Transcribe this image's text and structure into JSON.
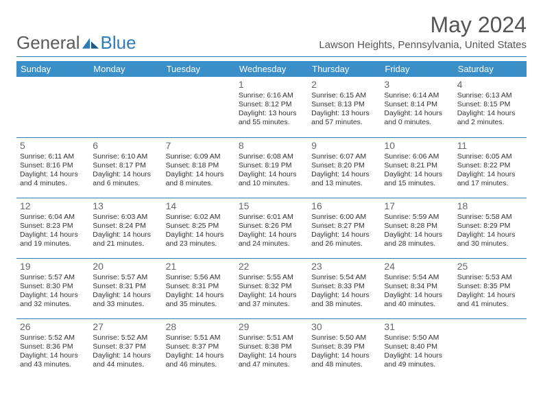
{
  "logo": {
    "text_a": "General",
    "text_b": "Blue"
  },
  "title": "May 2024",
  "location": "Lawson Heights, Pennsylvania, United States",
  "colors": {
    "header_bg": "#3b8fc9",
    "rule": "#2f7bb8",
    "text": "#333333",
    "muted": "#666666"
  },
  "day_headers": [
    "Sunday",
    "Monday",
    "Tuesday",
    "Wednesday",
    "Thursday",
    "Friday",
    "Saturday"
  ],
  "weeks": [
    [
      null,
      null,
      null,
      {
        "n": "1",
        "sr": "6:16 AM",
        "ss": "8:12 PM",
        "dl": "13 hours and 55 minutes."
      },
      {
        "n": "2",
        "sr": "6:15 AM",
        "ss": "8:13 PM",
        "dl": "13 hours and 57 minutes."
      },
      {
        "n": "3",
        "sr": "6:14 AM",
        "ss": "8:14 PM",
        "dl": "14 hours and 0 minutes."
      },
      {
        "n": "4",
        "sr": "6:13 AM",
        "ss": "8:15 PM",
        "dl": "14 hours and 2 minutes."
      }
    ],
    [
      {
        "n": "5",
        "sr": "6:11 AM",
        "ss": "8:16 PM",
        "dl": "14 hours and 4 minutes."
      },
      {
        "n": "6",
        "sr": "6:10 AM",
        "ss": "8:17 PM",
        "dl": "14 hours and 6 minutes."
      },
      {
        "n": "7",
        "sr": "6:09 AM",
        "ss": "8:18 PM",
        "dl": "14 hours and 8 minutes."
      },
      {
        "n": "8",
        "sr": "6:08 AM",
        "ss": "8:19 PM",
        "dl": "14 hours and 10 minutes."
      },
      {
        "n": "9",
        "sr": "6:07 AM",
        "ss": "8:20 PM",
        "dl": "14 hours and 13 minutes."
      },
      {
        "n": "10",
        "sr": "6:06 AM",
        "ss": "8:21 PM",
        "dl": "14 hours and 15 minutes."
      },
      {
        "n": "11",
        "sr": "6:05 AM",
        "ss": "8:22 PM",
        "dl": "14 hours and 17 minutes."
      }
    ],
    [
      {
        "n": "12",
        "sr": "6:04 AM",
        "ss": "8:23 PM",
        "dl": "14 hours and 19 minutes."
      },
      {
        "n": "13",
        "sr": "6:03 AM",
        "ss": "8:24 PM",
        "dl": "14 hours and 21 minutes."
      },
      {
        "n": "14",
        "sr": "6:02 AM",
        "ss": "8:25 PM",
        "dl": "14 hours and 23 minutes."
      },
      {
        "n": "15",
        "sr": "6:01 AM",
        "ss": "8:26 PM",
        "dl": "14 hours and 24 minutes."
      },
      {
        "n": "16",
        "sr": "6:00 AM",
        "ss": "8:27 PM",
        "dl": "14 hours and 26 minutes."
      },
      {
        "n": "17",
        "sr": "5:59 AM",
        "ss": "8:28 PM",
        "dl": "14 hours and 28 minutes."
      },
      {
        "n": "18",
        "sr": "5:58 AM",
        "ss": "8:29 PM",
        "dl": "14 hours and 30 minutes."
      }
    ],
    [
      {
        "n": "19",
        "sr": "5:57 AM",
        "ss": "8:30 PM",
        "dl": "14 hours and 32 minutes."
      },
      {
        "n": "20",
        "sr": "5:57 AM",
        "ss": "8:31 PM",
        "dl": "14 hours and 33 minutes."
      },
      {
        "n": "21",
        "sr": "5:56 AM",
        "ss": "8:31 PM",
        "dl": "14 hours and 35 minutes."
      },
      {
        "n": "22",
        "sr": "5:55 AM",
        "ss": "8:32 PM",
        "dl": "14 hours and 37 minutes."
      },
      {
        "n": "23",
        "sr": "5:54 AM",
        "ss": "8:33 PM",
        "dl": "14 hours and 38 minutes."
      },
      {
        "n": "24",
        "sr": "5:54 AM",
        "ss": "8:34 PM",
        "dl": "14 hours and 40 minutes."
      },
      {
        "n": "25",
        "sr": "5:53 AM",
        "ss": "8:35 PM",
        "dl": "14 hours and 41 minutes."
      }
    ],
    [
      {
        "n": "26",
        "sr": "5:52 AM",
        "ss": "8:36 PM",
        "dl": "14 hours and 43 minutes."
      },
      {
        "n": "27",
        "sr": "5:52 AM",
        "ss": "8:37 PM",
        "dl": "14 hours and 44 minutes."
      },
      {
        "n": "28",
        "sr": "5:51 AM",
        "ss": "8:37 PM",
        "dl": "14 hours and 46 minutes."
      },
      {
        "n": "29",
        "sr": "5:51 AM",
        "ss": "8:38 PM",
        "dl": "14 hours and 47 minutes."
      },
      {
        "n": "30",
        "sr": "5:50 AM",
        "ss": "8:39 PM",
        "dl": "14 hours and 48 minutes."
      },
      {
        "n": "31",
        "sr": "5:50 AM",
        "ss": "8:40 PM",
        "dl": "14 hours and 49 minutes."
      },
      null
    ]
  ],
  "labels": {
    "sunrise": "Sunrise: ",
    "sunset": "Sunset: ",
    "daylight": "Daylight: "
  }
}
